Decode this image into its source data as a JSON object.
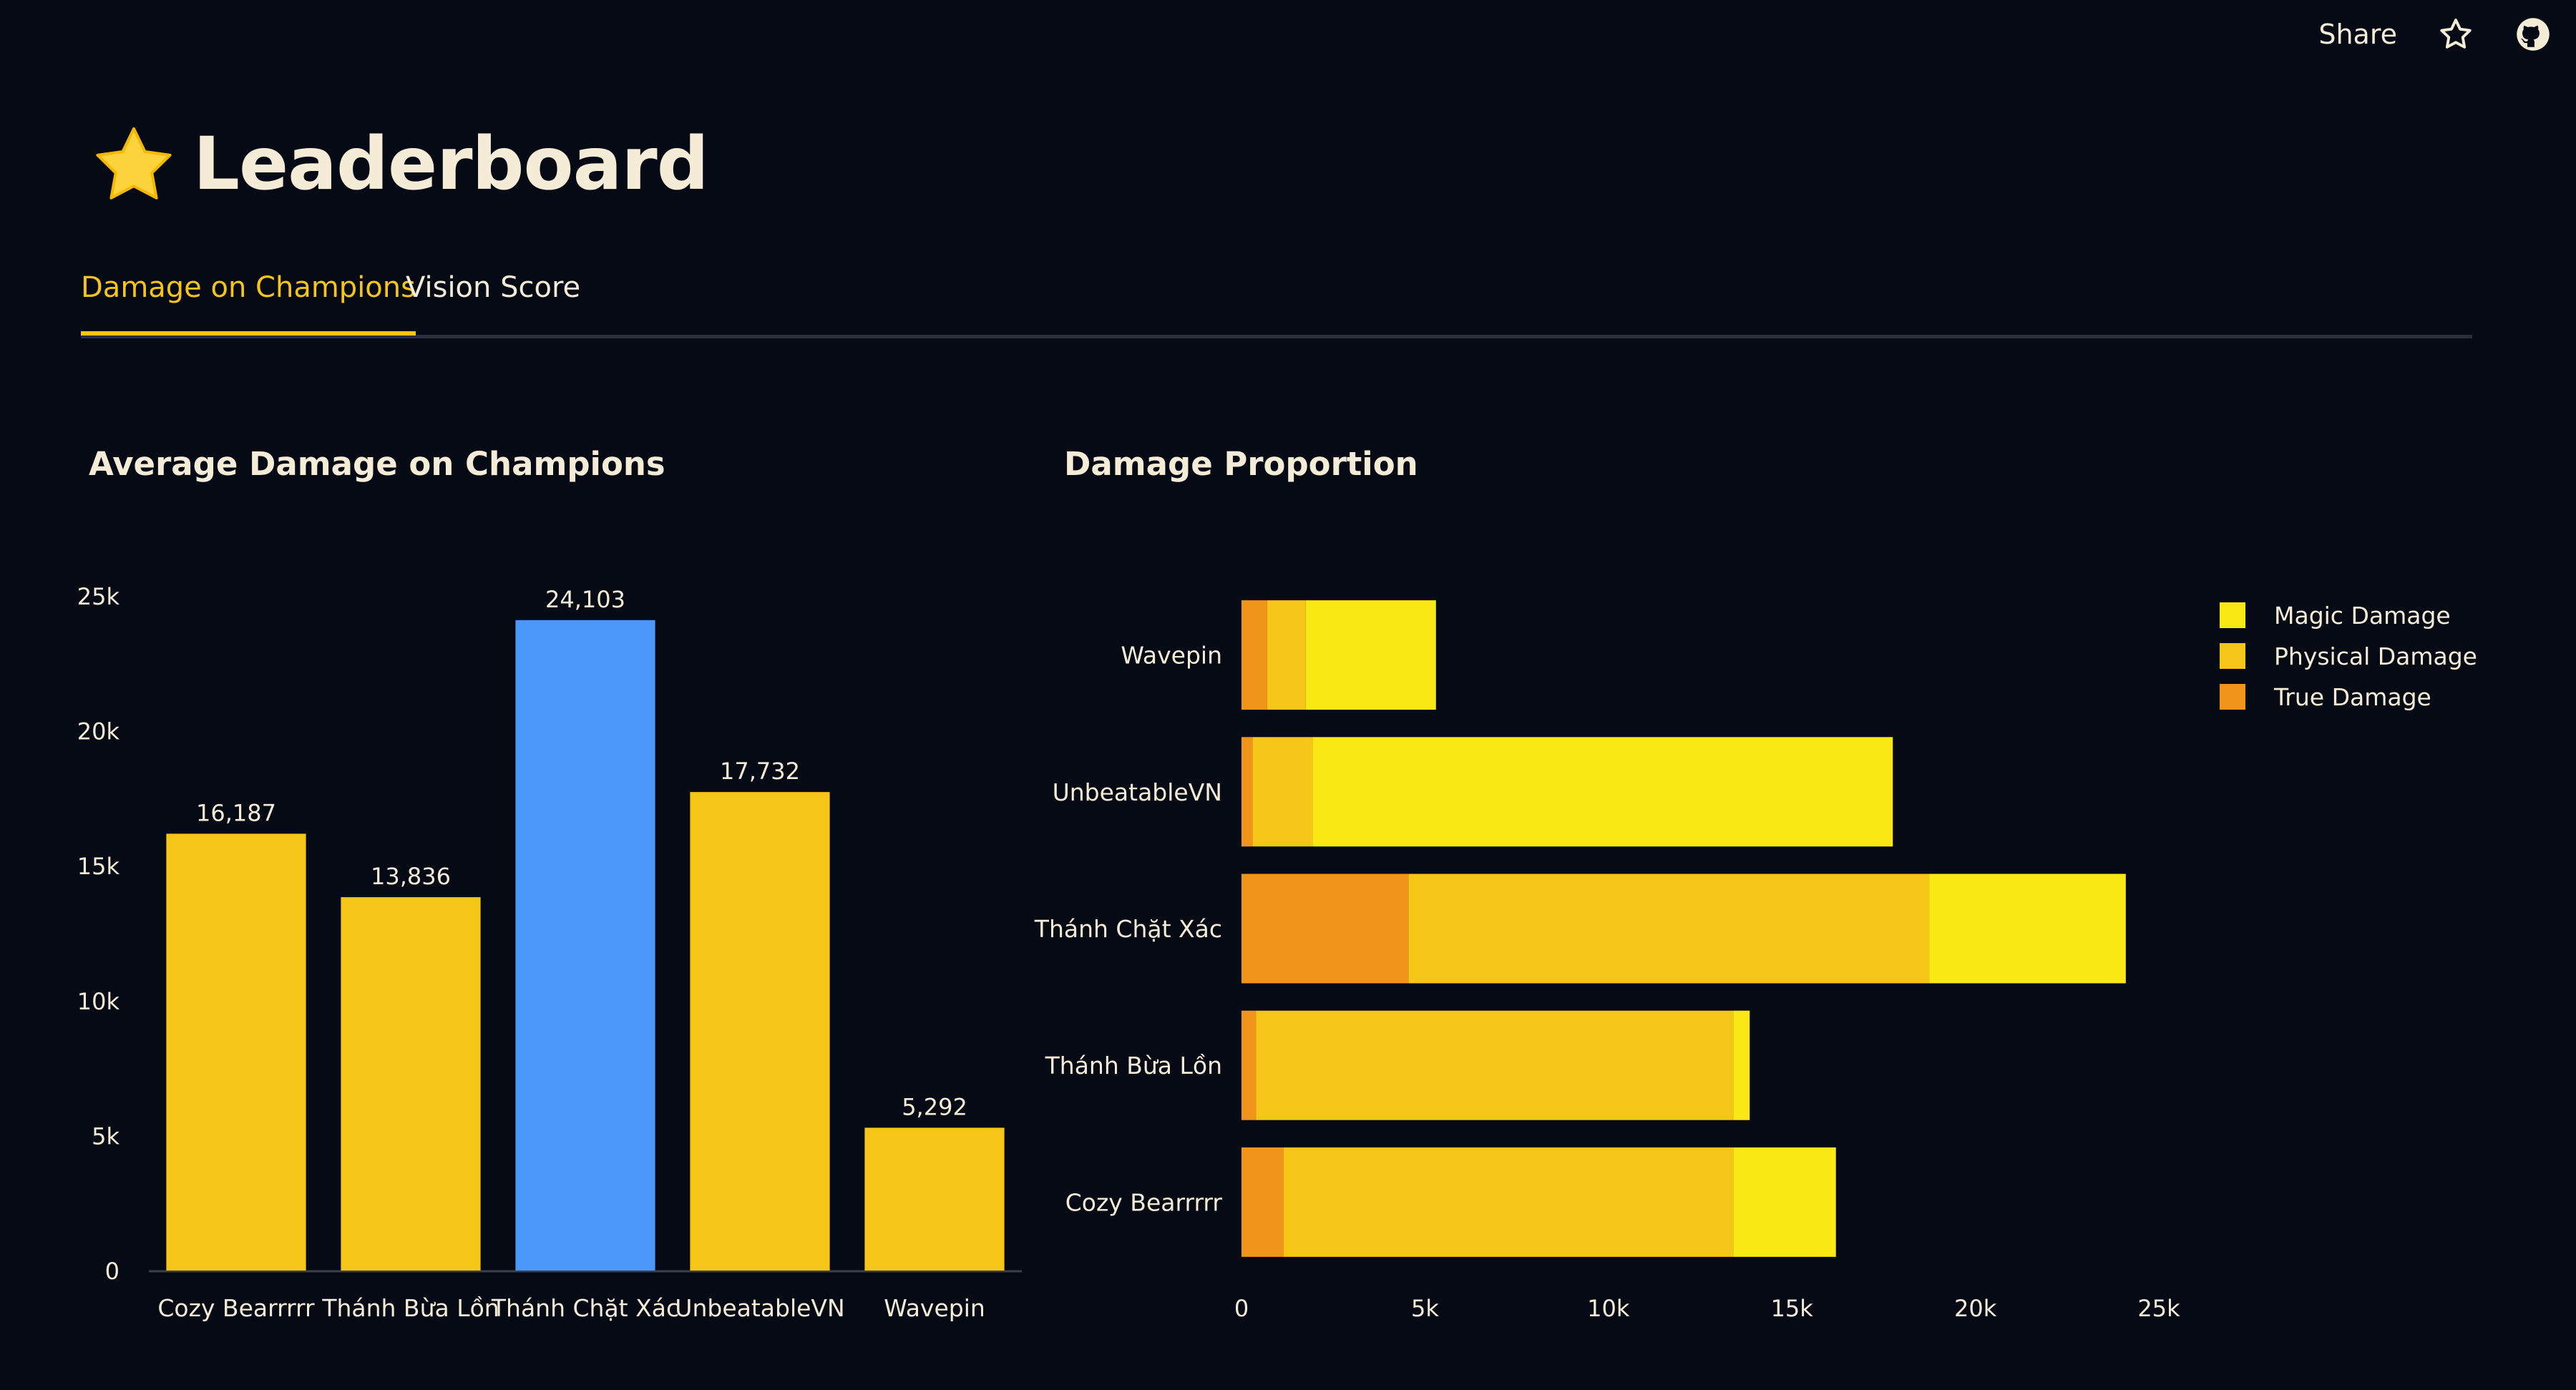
{
  "header": {
    "share_label": "Share",
    "star_icon": "star-outline-icon",
    "github_icon": "github-icon"
  },
  "page": {
    "title": "Leaderboard",
    "title_icon": "star-emoji-icon"
  },
  "tabs": [
    {
      "label": "Damage on Champions",
      "active": true
    },
    {
      "label": "Vision Score",
      "active": false
    }
  ],
  "colors": {
    "background": "#050a14",
    "bar_default": "#f5c518",
    "bar_highlight": "#4a98f7",
    "magic": "#f9e814",
    "physical": "#f5c518",
    "true": "#f0951a",
    "text": "#f5ecd7",
    "tab_active": "#f5c518"
  },
  "chart_data": [
    {
      "type": "bar",
      "title": "Average Damage on Champions",
      "categories": [
        "Cozy Bearrrrr",
        "Thánh Bừa Lồn",
        "Thánh Chặt Xác",
        "UnbeatableVN",
        "Wavepin"
      ],
      "values": [
        16187,
        13836,
        24103,
        17732,
        5292
      ],
      "value_labels": [
        "16,187",
        "13,836",
        "24,103",
        "17,732",
        "5,292"
      ],
      "highlight_index": 2,
      "ylim": [
        0,
        25000
      ],
      "yticks": [
        0,
        5000,
        10000,
        15000,
        20000,
        25000
      ],
      "ytick_labels": [
        "0",
        "5k",
        "10k",
        "15k",
        "20k",
        "25k"
      ],
      "grid": false
    },
    {
      "type": "bar",
      "orientation": "horizontal",
      "stacked": true,
      "title": "Damage Proportion",
      "categories": [
        "Wavepin",
        "UnbeatableVN",
        "Thánh Chặt Xác",
        "Thánh Bừa Lồn",
        "Cozy Bearrrrr"
      ],
      "series": [
        {
          "name": "True Damage",
          "values": [
            700,
            300,
            4550,
            400,
            1150
          ]
        },
        {
          "name": "Physical Damage",
          "values": [
            1050,
            1650,
            14200,
            13000,
            12250
          ]
        },
        {
          "name": "Magic Damage",
          "values": [
            3550,
            15800,
            5350,
            450,
            2800
          ]
        }
      ],
      "legend_order": [
        "Magic Damage",
        "Physical Damage",
        "True Damage"
      ],
      "legend_position": "top-right",
      "xlim": [
        0,
        25000
      ],
      "xticks": [
        0,
        5000,
        10000,
        15000,
        20000,
        25000
      ],
      "xtick_labels": [
        "0",
        "5k",
        "10k",
        "15k",
        "20k",
        "25k"
      ],
      "grid": false
    }
  ]
}
